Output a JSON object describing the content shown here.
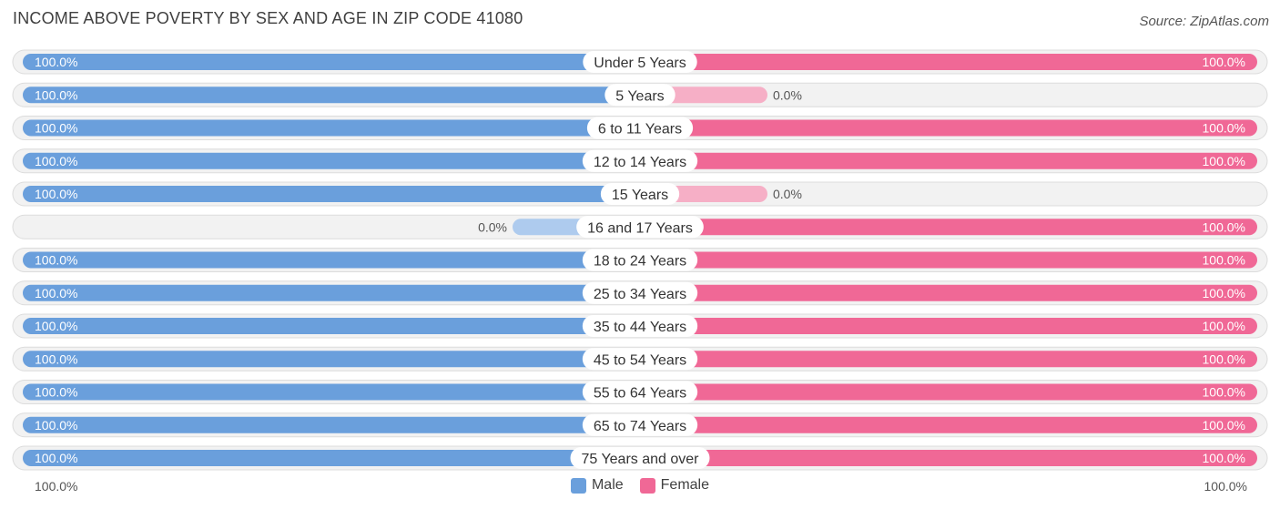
{
  "title": "INCOME ABOVE POVERTY BY SEX AND AGE IN ZIP CODE 41080",
  "source": "Source: ZipAtlas.com",
  "colors": {
    "male": "#6a9fdc",
    "male_light": "#aecbee",
    "female": "#f06896",
    "female_light": "#f6afc6"
  },
  "chart_data": {
    "type": "bar",
    "orientation": "horizontal-diverging",
    "categories": [
      "Under 5 Years",
      "5 Years",
      "6 to 11 Years",
      "12 to 14 Years",
      "15 Years",
      "16 and 17 Years",
      "18 to 24 Years",
      "25 to 34 Years",
      "35 to 44 Years",
      "45 to 54 Years",
      "55 to 64 Years",
      "65 to 74 Years",
      "75 Years and over"
    ],
    "series": [
      {
        "name": "Male",
        "values": [
          100.0,
          100.0,
          100.0,
          100.0,
          100.0,
          0.0,
          100.0,
          100.0,
          100.0,
          100.0,
          100.0,
          100.0,
          100.0
        ],
        "labels": [
          "100.0%",
          "100.0%",
          "100.0%",
          "100.0%",
          "100.0%",
          "0.0%",
          "100.0%",
          "100.0%",
          "100.0%",
          "100.0%",
          "100.0%",
          "100.0%",
          "100.0%"
        ]
      },
      {
        "name": "Female",
        "values": [
          100.0,
          0.0,
          100.0,
          100.0,
          0.0,
          100.0,
          100.0,
          100.0,
          100.0,
          100.0,
          100.0,
          100.0,
          100.0
        ],
        "labels": [
          "100.0%",
          "0.0%",
          "100.0%",
          "100.0%",
          "0.0%",
          "100.0%",
          "100.0%",
          "100.0%",
          "100.0%",
          "100.0%",
          "100.0%",
          "100.0%",
          "100.0%"
        ]
      }
    ],
    "xlim": [
      0,
      100
    ],
    "axis_labels": {
      "left": "100.0%",
      "right": "100.0%"
    },
    "legend": [
      "Male",
      "Female"
    ],
    "legend_position": "bottom-center"
  }
}
